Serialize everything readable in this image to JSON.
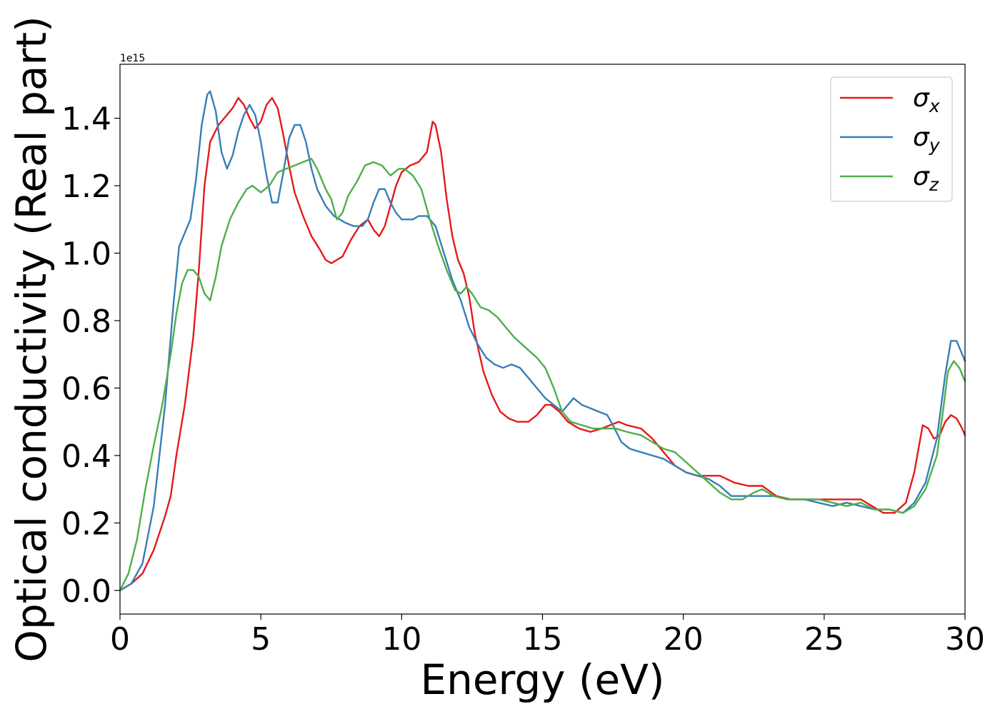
{
  "chart_data": {
    "type": "line",
    "xlabel": "Energy (eV)",
    "ylabel": "Optical conductivity (Real part)",
    "offset_text": "1e15",
    "xlim": [
      0,
      30
    ],
    "ylim": [
      -0.07,
      1.56
    ],
    "xticks": [
      0,
      5,
      10,
      15,
      20,
      25,
      30
    ],
    "yticks": [
      0.0,
      0.2,
      0.4,
      0.6,
      0.8,
      1.0,
      1.2,
      1.4
    ],
    "xtick_labels": [
      "0",
      "5",
      "10",
      "15",
      "20",
      "25",
      "30"
    ],
    "ytick_labels": [
      "0.0",
      "0.2",
      "0.4",
      "0.6",
      "0.8",
      "1.0",
      "1.2",
      "1.4"
    ],
    "grid": false,
    "legend": {
      "position": "top-right"
    },
    "series": [
      {
        "name": "σ",
        "subscript": "x",
        "color": "#e41a1c",
        "points": [
          [
            0,
            0
          ],
          [
            0.4,
            0.02
          ],
          [
            0.8,
            0.05
          ],
          [
            1.2,
            0.12
          ],
          [
            1.6,
            0.22
          ],
          [
            1.8,
            0.28
          ],
          [
            2.0,
            0.4
          ],
          [
            2.3,
            0.55
          ],
          [
            2.6,
            0.75
          ],
          [
            2.8,
            0.95
          ],
          [
            3.0,
            1.2
          ],
          [
            3.2,
            1.33
          ],
          [
            3.5,
            1.38
          ],
          [
            3.8,
            1.41
          ],
          [
            4.0,
            1.43
          ],
          [
            4.2,
            1.46
          ],
          [
            4.4,
            1.44
          ],
          [
            4.6,
            1.4
          ],
          [
            4.8,
            1.37
          ],
          [
            5.0,
            1.39
          ],
          [
            5.2,
            1.44
          ],
          [
            5.4,
            1.46
          ],
          [
            5.6,
            1.43
          ],
          [
            5.8,
            1.35
          ],
          [
            6.0,
            1.26
          ],
          [
            6.2,
            1.18
          ],
          [
            6.5,
            1.11
          ],
          [
            6.8,
            1.05
          ],
          [
            7.1,
            1.01
          ],
          [
            7.3,
            0.98
          ],
          [
            7.5,
            0.97
          ],
          [
            7.9,
            0.99
          ],
          [
            8.2,
            1.04
          ],
          [
            8.5,
            1.08
          ],
          [
            8.8,
            1.1
          ],
          [
            9.0,
            1.07
          ],
          [
            9.2,
            1.05
          ],
          [
            9.4,
            1.08
          ],
          [
            9.6,
            1.14
          ],
          [
            9.8,
            1.2
          ],
          [
            10.0,
            1.24
          ],
          [
            10.3,
            1.26
          ],
          [
            10.6,
            1.27
          ],
          [
            10.9,
            1.3
          ],
          [
            11.1,
            1.39
          ],
          [
            11.2,
            1.38
          ],
          [
            11.4,
            1.3
          ],
          [
            11.6,
            1.16
          ],
          [
            11.8,
            1.05
          ],
          [
            12.0,
            0.98
          ],
          [
            12.2,
            0.94
          ],
          [
            12.4,
            0.87
          ],
          [
            12.6,
            0.76
          ],
          [
            12.9,
            0.65
          ],
          [
            13.2,
            0.58
          ],
          [
            13.5,
            0.53
          ],
          [
            13.8,
            0.51
          ],
          [
            14.1,
            0.5
          ],
          [
            14.5,
            0.5
          ],
          [
            14.8,
            0.52
          ],
          [
            15.1,
            0.55
          ],
          [
            15.3,
            0.55
          ],
          [
            15.6,
            0.53
          ],
          [
            15.9,
            0.5
          ],
          [
            16.3,
            0.48
          ],
          [
            16.7,
            0.47
          ],
          [
            17.1,
            0.48
          ],
          [
            17.4,
            0.49
          ],
          [
            17.7,
            0.5
          ],
          [
            18.0,
            0.49
          ],
          [
            18.5,
            0.48
          ],
          [
            18.9,
            0.45
          ],
          [
            19.3,
            0.41
          ],
          [
            19.7,
            0.37
          ],
          [
            20.1,
            0.35
          ],
          [
            20.5,
            0.34
          ],
          [
            20.9,
            0.34
          ],
          [
            21.3,
            0.34
          ],
          [
            21.8,
            0.32
          ],
          [
            22.3,
            0.31
          ],
          [
            22.8,
            0.31
          ],
          [
            23.3,
            0.28
          ],
          [
            23.8,
            0.27
          ],
          [
            24.3,
            0.27
          ],
          [
            24.8,
            0.27
          ],
          [
            25.3,
            0.27
          ],
          [
            25.8,
            0.27
          ],
          [
            26.3,
            0.27
          ],
          [
            26.7,
            0.25
          ],
          [
            27.1,
            0.23
          ],
          [
            27.5,
            0.23
          ],
          [
            27.9,
            0.26
          ],
          [
            28.2,
            0.35
          ],
          [
            28.5,
            0.49
          ],
          [
            28.7,
            0.48
          ],
          [
            28.9,
            0.45
          ],
          [
            29.1,
            0.46
          ],
          [
            29.3,
            0.5
          ],
          [
            29.5,
            0.52
          ],
          [
            29.7,
            0.51
          ],
          [
            29.9,
            0.48
          ],
          [
            30.0,
            0.46
          ]
        ]
      },
      {
        "name": "σ",
        "subscript": "y",
        "color": "#377eb8",
        "points": [
          [
            0,
            0
          ],
          [
            0.4,
            0.02
          ],
          [
            0.8,
            0.08
          ],
          [
            1.2,
            0.25
          ],
          [
            1.6,
            0.55
          ],
          [
            1.9,
            0.85
          ],
          [
            2.1,
            1.02
          ],
          [
            2.3,
            1.06
          ],
          [
            2.5,
            1.1
          ],
          [
            2.7,
            1.22
          ],
          [
            2.9,
            1.38
          ],
          [
            3.1,
            1.47
          ],
          [
            3.2,
            1.48
          ],
          [
            3.4,
            1.42
          ],
          [
            3.6,
            1.3
          ],
          [
            3.8,
            1.25
          ],
          [
            4.0,
            1.29
          ],
          [
            4.2,
            1.36
          ],
          [
            4.4,
            1.41
          ],
          [
            4.6,
            1.44
          ],
          [
            4.8,
            1.41
          ],
          [
            5.0,
            1.33
          ],
          [
            5.2,
            1.23
          ],
          [
            5.4,
            1.15
          ],
          [
            5.6,
            1.15
          ],
          [
            5.8,
            1.24
          ],
          [
            6.0,
            1.34
          ],
          [
            6.2,
            1.38
          ],
          [
            6.4,
            1.38
          ],
          [
            6.6,
            1.33
          ],
          [
            6.8,
            1.25
          ],
          [
            7.0,
            1.19
          ],
          [
            7.3,
            1.14
          ],
          [
            7.6,
            1.11
          ],
          [
            8.0,
            1.09
          ],
          [
            8.3,
            1.08
          ],
          [
            8.6,
            1.08
          ],
          [
            8.8,
            1.1
          ],
          [
            9.0,
            1.15
          ],
          [
            9.2,
            1.19
          ],
          [
            9.4,
            1.19
          ],
          [
            9.6,
            1.15
          ],
          [
            9.8,
            1.12
          ],
          [
            10.0,
            1.1
          ],
          [
            10.4,
            1.1
          ],
          [
            10.6,
            1.11
          ],
          [
            10.9,
            1.11
          ],
          [
            11.2,
            1.08
          ],
          [
            11.5,
            1.0
          ],
          [
            11.8,
            0.92
          ],
          [
            12.1,
            0.86
          ],
          [
            12.4,
            0.78
          ],
          [
            12.7,
            0.73
          ],
          [
            13.0,
            0.69
          ],
          [
            13.3,
            0.67
          ],
          [
            13.6,
            0.66
          ],
          [
            13.9,
            0.67
          ],
          [
            14.2,
            0.66
          ],
          [
            14.5,
            0.63
          ],
          [
            14.8,
            0.6
          ],
          [
            15.1,
            0.57
          ],
          [
            15.4,
            0.55
          ],
          [
            15.7,
            0.53
          ],
          [
            15.9,
            0.55
          ],
          [
            16.1,
            0.57
          ],
          [
            16.4,
            0.55
          ],
          [
            16.7,
            0.54
          ],
          [
            17.0,
            0.53
          ],
          [
            17.3,
            0.52
          ],
          [
            17.5,
            0.49
          ],
          [
            17.8,
            0.44
          ],
          [
            18.1,
            0.42
          ],
          [
            18.5,
            0.41
          ],
          [
            18.9,
            0.4
          ],
          [
            19.3,
            0.39
          ],
          [
            19.7,
            0.37
          ],
          [
            20.1,
            0.35
          ],
          [
            20.5,
            0.34
          ],
          [
            20.9,
            0.33
          ],
          [
            21.3,
            0.31
          ],
          [
            21.7,
            0.28
          ],
          [
            22.2,
            0.28
          ],
          [
            22.7,
            0.28
          ],
          [
            23.2,
            0.28
          ],
          [
            23.7,
            0.27
          ],
          [
            24.3,
            0.27
          ],
          [
            24.8,
            0.26
          ],
          [
            25.3,
            0.25
          ],
          [
            25.8,
            0.26
          ],
          [
            26.3,
            0.25
          ],
          [
            26.8,
            0.24
          ],
          [
            27.3,
            0.24
          ],
          [
            27.8,
            0.23
          ],
          [
            28.2,
            0.26
          ],
          [
            28.6,
            0.32
          ],
          [
            29.0,
            0.45
          ],
          [
            29.3,
            0.64
          ],
          [
            29.5,
            0.74
          ],
          [
            29.7,
            0.74
          ],
          [
            29.9,
            0.7
          ],
          [
            30.0,
            0.68
          ]
        ]
      },
      {
        "name": "σ",
        "subscript": "z",
        "color": "#4daf4a",
        "points": [
          [
            0,
            0
          ],
          [
            0.3,
            0.05
          ],
          [
            0.6,
            0.15
          ],
          [
            0.9,
            0.3
          ],
          [
            1.2,
            0.43
          ],
          [
            1.5,
            0.55
          ],
          [
            1.8,
            0.7
          ],
          [
            2.0,
            0.82
          ],
          [
            2.2,
            0.91
          ],
          [
            2.4,
            0.95
          ],
          [
            2.6,
            0.95
          ],
          [
            2.8,
            0.93
          ],
          [
            3.0,
            0.88
          ],
          [
            3.2,
            0.86
          ],
          [
            3.4,
            0.93
          ],
          [
            3.6,
            1.02
          ],
          [
            3.9,
            1.1
          ],
          [
            4.2,
            1.15
          ],
          [
            4.5,
            1.19
          ],
          [
            4.7,
            1.2
          ],
          [
            5.0,
            1.18
          ],
          [
            5.3,
            1.2
          ],
          [
            5.6,
            1.24
          ],
          [
            5.9,
            1.25
          ],
          [
            6.2,
            1.26
          ],
          [
            6.5,
            1.27
          ],
          [
            6.8,
            1.28
          ],
          [
            7.0,
            1.25
          ],
          [
            7.3,
            1.19
          ],
          [
            7.5,
            1.16
          ],
          [
            7.7,
            1.1
          ],
          [
            7.9,
            1.12
          ],
          [
            8.1,
            1.17
          ],
          [
            8.4,
            1.21
          ],
          [
            8.7,
            1.26
          ],
          [
            9.0,
            1.27
          ],
          [
            9.3,
            1.26
          ],
          [
            9.6,
            1.23
          ],
          [
            9.9,
            1.25
          ],
          [
            10.1,
            1.25
          ],
          [
            10.4,
            1.23
          ],
          [
            10.7,
            1.19
          ],
          [
            11.0,
            1.1
          ],
          [
            11.3,
            1.02
          ],
          [
            11.6,
            0.95
          ],
          [
            11.9,
            0.89
          ],
          [
            12.1,
            0.88
          ],
          [
            12.3,
            0.9
          ],
          [
            12.5,
            0.88
          ],
          [
            12.8,
            0.84
          ],
          [
            13.1,
            0.83
          ],
          [
            13.4,
            0.81
          ],
          [
            13.7,
            0.78
          ],
          [
            14.0,
            0.75
          ],
          [
            14.4,
            0.72
          ],
          [
            14.8,
            0.69
          ],
          [
            15.1,
            0.66
          ],
          [
            15.4,
            0.6
          ],
          [
            15.7,
            0.53
          ],
          [
            16.0,
            0.5
          ],
          [
            16.4,
            0.49
          ],
          [
            16.8,
            0.48
          ],
          [
            17.2,
            0.48
          ],
          [
            17.6,
            0.48
          ],
          [
            18.0,
            0.47
          ],
          [
            18.5,
            0.46
          ],
          [
            18.9,
            0.44
          ],
          [
            19.3,
            0.42
          ],
          [
            19.7,
            0.41
          ],
          [
            20.1,
            0.38
          ],
          [
            20.5,
            0.35
          ],
          [
            20.9,
            0.32
          ],
          [
            21.3,
            0.29
          ],
          [
            21.7,
            0.27
          ],
          [
            22.1,
            0.27
          ],
          [
            22.5,
            0.29
          ],
          [
            22.8,
            0.3
          ],
          [
            23.2,
            0.28
          ],
          [
            23.7,
            0.27
          ],
          [
            24.2,
            0.27
          ],
          [
            24.8,
            0.27
          ],
          [
            25.3,
            0.26
          ],
          [
            25.8,
            0.25
          ],
          [
            26.3,
            0.26
          ],
          [
            26.8,
            0.24
          ],
          [
            27.3,
            0.24
          ],
          [
            27.8,
            0.23
          ],
          [
            28.2,
            0.25
          ],
          [
            28.6,
            0.3
          ],
          [
            29.0,
            0.4
          ],
          [
            29.2,
            0.52
          ],
          [
            29.4,
            0.65
          ],
          [
            29.6,
            0.68
          ],
          [
            29.8,
            0.66
          ],
          [
            30.0,
            0.62
          ]
        ]
      }
    ]
  }
}
